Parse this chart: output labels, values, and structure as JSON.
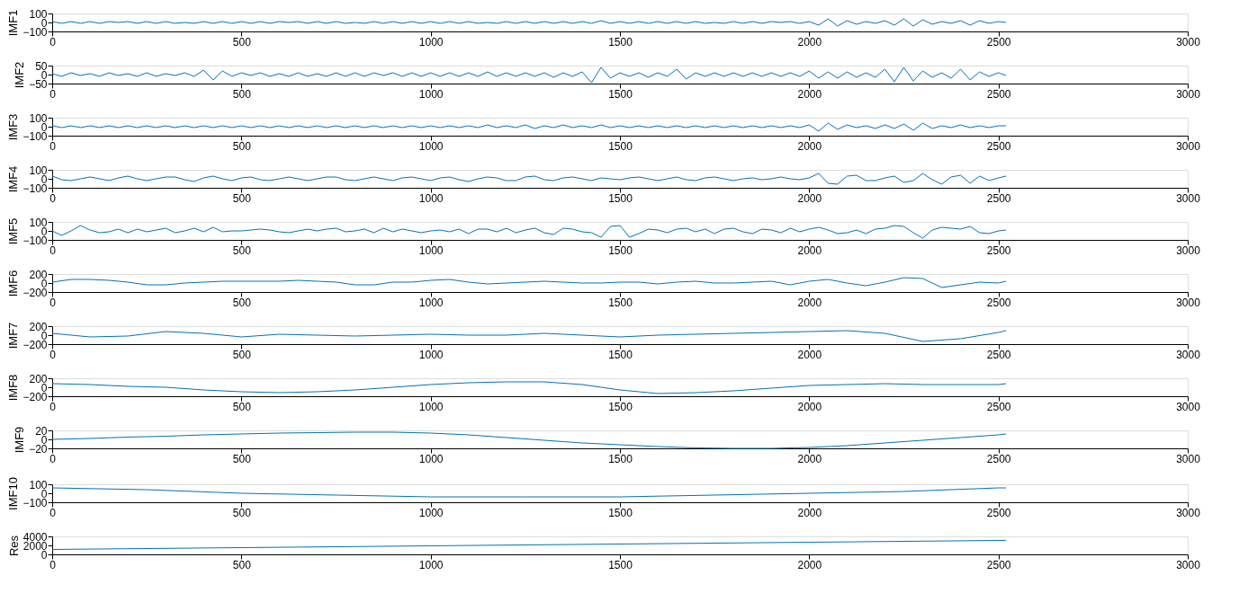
{
  "chart_data": [
    {
      "type": "line",
      "ylabel": "IMF1",
      "xlim": [
        0,
        3000
      ],
      "xticks": [
        0,
        500,
        1000,
        1500,
        2000,
        2500,
        3000
      ],
      "ylim": [
        -100,
        100
      ],
      "yticks": [
        -100,
        0,
        100
      ],
      "grid": false,
      "series": [
        {
          "color": "#0072bd",
          "line_style": "solid",
          "x": [
            0,
            25,
            50,
            75,
            100,
            125,
            150,
            175,
            200,
            225,
            250,
            275,
            300,
            325,
            350,
            375,
            400,
            425,
            450,
            475,
            500,
            525,
            550,
            575,
            600,
            625,
            650,
            675,
            700,
            725,
            750,
            775,
            800,
            825,
            850,
            875,
            900,
            925,
            950,
            975,
            1000,
            1025,
            1050,
            1075,
            1100,
            1125,
            1150,
            1175,
            1200,
            1225,
            1250,
            1275,
            1300,
            1325,
            1350,
            1375,
            1400,
            1425,
            1450,
            1475,
            1500,
            1525,
            1550,
            1575,
            1600,
            1625,
            1650,
            1675,
            1700,
            1725,
            1750,
            1775,
            1800,
            1825,
            1850,
            1875,
            1900,
            1925,
            1950,
            1975,
            2000,
            2025,
            2050,
            2075,
            2100,
            2125,
            2150,
            2175,
            2200,
            2225,
            2250,
            2275,
            2300,
            2325,
            2350,
            2375,
            2400,
            2425,
            2450,
            2475,
            2500,
            2520
          ],
          "values": [
            10,
            -10,
            10,
            -10,
            10,
            -10,
            10,
            0,
            10,
            -10,
            10,
            -10,
            10,
            -10,
            0,
            -10,
            10,
            -10,
            10,
            -10,
            10,
            -10,
            10,
            -10,
            10,
            0,
            10,
            -10,
            10,
            -10,
            10,
            -10,
            0,
            -10,
            10,
            -10,
            10,
            -10,
            10,
            -10,
            10,
            -10,
            10,
            -10,
            10,
            -10,
            0,
            -10,
            10,
            -10,
            10,
            -10,
            10,
            -10,
            10,
            -10,
            10,
            -10,
            20,
            -10,
            10,
            -10,
            10,
            -10,
            10,
            -10,
            10,
            -10,
            10,
            -10,
            0,
            -10,
            10,
            -10,
            10,
            -10,
            10,
            0,
            10,
            -10,
            10,
            -30,
            40,
            -40,
            20,
            -20,
            10,
            -10,
            20,
            -30,
            40,
            -40,
            30,
            -20,
            10,
            -10,
            20,
            -30,
            20,
            -10,
            10,
            0
          ]
        }
      ]
    },
    {
      "type": "line",
      "ylabel": "IMF2",
      "xlim": [
        0,
        3000
      ],
      "xticks": [
        0,
        500,
        1000,
        1500,
        2000,
        2500,
        3000
      ],
      "ylim": [
        -50,
        50
      ],
      "yticks": [
        -50,
        0,
        50
      ],
      "grid": false,
      "series": [
        {
          "color": "#0072bd",
          "line_style": "solid",
          "x": [
            0,
            25,
            50,
            75,
            100,
            125,
            150,
            175,
            200,
            225,
            250,
            275,
            300,
            325,
            350,
            375,
            400,
            425,
            450,
            475,
            500,
            525,
            550,
            575,
            600,
            625,
            650,
            675,
            700,
            725,
            750,
            775,
            800,
            825,
            850,
            875,
            900,
            925,
            950,
            975,
            1000,
            1025,
            1050,
            1075,
            1100,
            1125,
            1150,
            1175,
            1200,
            1225,
            1250,
            1275,
            1300,
            1325,
            1350,
            1375,
            1400,
            1425,
            1450,
            1475,
            1500,
            1525,
            1550,
            1575,
            1600,
            1625,
            1650,
            1675,
            1700,
            1725,
            1750,
            1775,
            1800,
            1825,
            1850,
            1875,
            1900,
            1925,
            1950,
            1975,
            2000,
            2025,
            2050,
            2075,
            2100,
            2125,
            2150,
            2175,
            2200,
            2225,
            2250,
            2275,
            2300,
            2325,
            2350,
            2375,
            2400,
            2425,
            2450,
            2475,
            2500,
            2520
          ],
          "values": [
            5,
            -10,
            10,
            -5,
            5,
            -10,
            10,
            -5,
            5,
            -10,
            10,
            -10,
            5,
            -5,
            10,
            -10,
            25,
            -30,
            20,
            -10,
            10,
            -5,
            10,
            -10,
            5,
            -10,
            10,
            -10,
            5,
            -10,
            10,
            -10,
            10,
            -10,
            10,
            -5,
            10,
            -10,
            10,
            -10,
            10,
            -10,
            10,
            -10,
            10,
            -10,
            15,
            -10,
            10,
            -10,
            10,
            -10,
            10,
            -15,
            10,
            -10,
            15,
            -45,
            40,
            -20,
            10,
            -10,
            10,
            -15,
            10,
            -10,
            30,
            -25,
            10,
            -10,
            10,
            -10,
            10,
            -10,
            10,
            -10,
            10,
            -10,
            10,
            -10,
            20,
            -20,
            15,
            -20,
            15,
            -15,
            10,
            -15,
            30,
            -40,
            40,
            -35,
            20,
            -15,
            10,
            -20,
            30,
            -30,
            15,
            -10,
            10,
            -5
          ]
        }
      ]
    },
    {
      "type": "line",
      "ylabel": "IMF3",
      "xlim": [
        0,
        3000
      ],
      "xticks": [
        0,
        500,
        1000,
        1500,
        2000,
        2500,
        3000
      ],
      "ylim": [
        -100,
        100
      ],
      "yticks": [
        -100,
        0,
        100
      ],
      "grid": false,
      "series": [
        {
          "color": "#0072bd",
          "line_style": "solid",
          "x": [
            0,
            25,
            50,
            75,
            100,
            125,
            150,
            175,
            200,
            225,
            250,
            275,
            300,
            325,
            350,
            375,
            400,
            425,
            450,
            475,
            500,
            525,
            550,
            575,
            600,
            625,
            650,
            675,
            700,
            725,
            750,
            775,
            800,
            825,
            850,
            875,
            900,
            925,
            950,
            975,
            1000,
            1025,
            1050,
            1075,
            1100,
            1125,
            1150,
            1175,
            1200,
            1225,
            1250,
            1275,
            1300,
            1325,
            1350,
            1375,
            1400,
            1425,
            1450,
            1475,
            1500,
            1525,
            1550,
            1575,
            1600,
            1625,
            1650,
            1675,
            1700,
            1725,
            1750,
            1775,
            1800,
            1825,
            1850,
            1875,
            1900,
            1925,
            1950,
            1975,
            2000,
            2025,
            2050,
            2075,
            2100,
            2125,
            2150,
            2175,
            2200,
            2225,
            2250,
            2275,
            2300,
            2325,
            2350,
            2375,
            2400,
            2425,
            2450,
            2475,
            2500,
            2520
          ],
          "values": [
            10,
            -10,
            10,
            -10,
            10,
            -10,
            10,
            -10,
            10,
            -10,
            10,
            -10,
            10,
            -10,
            10,
            -10,
            10,
            -10,
            10,
            -10,
            10,
            -10,
            10,
            -10,
            10,
            -10,
            10,
            -10,
            10,
            -10,
            10,
            -10,
            10,
            -10,
            10,
            -10,
            10,
            -10,
            10,
            -10,
            10,
            -10,
            10,
            -10,
            10,
            -10,
            20,
            -10,
            10,
            -10,
            20,
            -20,
            10,
            -10,
            20,
            -10,
            10,
            -10,
            20,
            -10,
            10,
            -10,
            10,
            -10,
            10,
            -10,
            10,
            -10,
            10,
            -10,
            10,
            -10,
            10,
            -10,
            10,
            -10,
            10,
            -10,
            10,
            -10,
            20,
            -50,
            40,
            -30,
            20,
            -10,
            10,
            -20,
            20,
            -20,
            30,
            -40,
            40,
            -20,
            10,
            -10,
            20,
            -10,
            10,
            -10,
            10,
            10
          ]
        }
      ]
    },
    {
      "type": "line",
      "ylabel": "IMF4",
      "xlim": [
        0,
        3000
      ],
      "xticks": [
        0,
        500,
        1000,
        1500,
        2000,
        2500,
        3000
      ],
      "ylim": [
        -100,
        100
      ],
      "yticks": [
        -100,
        0,
        100
      ],
      "grid": false,
      "series": [
        {
          "color": "#0072bd",
          "line_style": "solid",
          "x": [
            0,
            25,
            50,
            75,
            100,
            125,
            150,
            175,
            200,
            225,
            250,
            275,
            300,
            325,
            350,
            375,
            400,
            425,
            450,
            475,
            500,
            525,
            550,
            575,
            600,
            625,
            650,
            675,
            700,
            725,
            750,
            775,
            800,
            825,
            850,
            875,
            900,
            925,
            950,
            975,
            1000,
            1025,
            1050,
            1075,
            1100,
            1125,
            1150,
            1175,
            1200,
            1225,
            1250,
            1275,
            1300,
            1325,
            1350,
            1375,
            1400,
            1425,
            1450,
            1475,
            1500,
            1525,
            1550,
            1575,
            1600,
            1625,
            1650,
            1675,
            1700,
            1725,
            1750,
            1775,
            1800,
            1825,
            1850,
            1875,
            1900,
            1925,
            1950,
            1975,
            2000,
            2025,
            2050,
            2075,
            2100,
            2125,
            2150,
            2175,
            2200,
            2225,
            2250,
            2275,
            2300,
            2325,
            2350,
            2375,
            2400,
            2425,
            2450,
            2475,
            2500,
            2520
          ],
          "values": [
            30,
            -10,
            -20,
            0,
            20,
            0,
            -20,
            10,
            30,
            0,
            -20,
            0,
            20,
            20,
            -10,
            -30,
            10,
            30,
            0,
            -20,
            10,
            20,
            -10,
            -20,
            0,
            20,
            0,
            -20,
            0,
            20,
            20,
            -10,
            -20,
            0,
            20,
            0,
            -20,
            10,
            20,
            0,
            -20,
            10,
            20,
            -10,
            -30,
            0,
            20,
            10,
            -20,
            -20,
            20,
            30,
            -10,
            -20,
            10,
            20,
            0,
            -20,
            10,
            0,
            -10,
            10,
            20,
            0,
            -20,
            0,
            20,
            -10,
            -20,
            10,
            20,
            0,
            -20,
            0,
            10,
            -10,
            0,
            20,
            0,
            -10,
            10,
            60,
            -50,
            -60,
            30,
            40,
            -20,
            -20,
            10,
            30,
            -40,
            -20,
            60,
            -10,
            -60,
            20,
            40,
            -50,
            30,
            -20,
            10,
            30
          ]
        }
      ]
    },
    {
      "type": "line",
      "ylabel": "IMF5",
      "xlim": [
        0,
        3000
      ],
      "xticks": [
        0,
        500,
        1000,
        1500,
        2000,
        2500,
        3000
      ],
      "ylim": [
        -100,
        100
      ],
      "yticks": [
        -100,
        0,
        100
      ],
      "grid": false,
      "series": [
        {
          "color": "#0072bd",
          "line_style": "solid",
          "x": [
            0,
            25,
            50,
            75,
            100,
            125,
            150,
            175,
            200,
            225,
            250,
            275,
            300,
            325,
            350,
            375,
            400,
            425,
            450,
            475,
            500,
            525,
            550,
            575,
            600,
            625,
            650,
            675,
            700,
            725,
            750,
            775,
            800,
            825,
            850,
            875,
            900,
            925,
            950,
            975,
            1000,
            1025,
            1050,
            1075,
            1100,
            1125,
            1150,
            1175,
            1200,
            1225,
            1250,
            1275,
            1300,
            1325,
            1350,
            1375,
            1400,
            1425,
            1450,
            1475,
            1500,
            1525,
            1550,
            1575,
            1600,
            1625,
            1650,
            1675,
            1700,
            1725,
            1750,
            1775,
            1800,
            1825,
            1850,
            1875,
            1900,
            1925,
            1950,
            1975,
            2000,
            2025,
            2050,
            2075,
            2100,
            2125,
            2150,
            2175,
            2200,
            2225,
            2250,
            2275,
            2300,
            2325,
            2350,
            2375,
            2400,
            2425,
            2450,
            2475,
            2500,
            2520
          ],
          "values": [
            0,
            -50,
            0,
            60,
            10,
            -20,
            -10,
            20,
            -20,
            20,
            -10,
            10,
            30,
            -20,
            0,
            30,
            -10,
            40,
            -10,
            0,
            0,
            10,
            20,
            10,
            -10,
            -20,
            0,
            20,
            0,
            20,
            30,
            -10,
            0,
            20,
            -20,
            30,
            -10,
            20,
            0,
            -20,
            0,
            10,
            -10,
            20,
            -30,
            20,
            20,
            -10,
            30,
            -20,
            10,
            30,
            -20,
            -40,
            30,
            20,
            -10,
            -20,
            -70,
            50,
            60,
            -70,
            -30,
            20,
            10,
            -20,
            20,
            30,
            -10,
            20,
            -30,
            20,
            30,
            -10,
            -30,
            20,
            10,
            -20,
            30,
            -10,
            20,
            40,
            10,
            -30,
            -20,
            10,
            -30,
            20,
            30,
            60,
            50,
            -20,
            -80,
            10,
            40,
            30,
            20,
            50,
            -20,
            -30,
            0,
            10
          ]
        }
      ]
    },
    {
      "type": "line",
      "ylabel": "IMF6",
      "xlim": [
        0,
        3000
      ],
      "xticks": [
        0,
        500,
        1000,
        1500,
        2000,
        2500,
        3000
      ],
      "ylim": [
        -200,
        200
      ],
      "yticks": [
        -200,
        0,
        200
      ],
      "grid": false,
      "series": [
        {
          "color": "#0072bd",
          "line_style": "solid",
          "x": [
            0,
            50,
            100,
            150,
            200,
            250,
            300,
            350,
            400,
            450,
            500,
            550,
            600,
            650,
            700,
            750,
            800,
            850,
            900,
            950,
            1000,
            1050,
            1100,
            1150,
            1200,
            1250,
            1300,
            1350,
            1400,
            1450,
            1500,
            1550,
            1600,
            1650,
            1700,
            1750,
            1800,
            1850,
            1900,
            1950,
            2000,
            2050,
            2100,
            2150,
            2200,
            2250,
            2300,
            2350,
            2400,
            2450,
            2500,
            2520
          ],
          "values": [
            20,
            80,
            80,
            60,
            20,
            -40,
            -40,
            0,
            20,
            40,
            40,
            40,
            40,
            60,
            40,
            20,
            -40,
            -40,
            20,
            20,
            60,
            80,
            20,
            -20,
            0,
            20,
            40,
            20,
            0,
            0,
            20,
            20,
            -20,
            20,
            40,
            0,
            0,
            20,
            40,
            -40,
            40,
            80,
            0,
            -60,
            20,
            120,
            100,
            -100,
            -40,
            20,
            0,
            40
          ]
        }
      ]
    },
    {
      "type": "line",
      "ylabel": "IMF7",
      "xlim": [
        0,
        3000
      ],
      "xticks": [
        0,
        500,
        1000,
        1500,
        2000,
        2500,
        3000
      ],
      "ylim": [
        -200,
        200
      ],
      "yticks": [
        -200,
        0,
        200
      ],
      "grid": false,
      "series": [
        {
          "color": "#0072bd",
          "line_style": "solid",
          "x": [
            0,
            100,
            200,
            300,
            400,
            500,
            600,
            700,
            800,
            900,
            1000,
            1100,
            1200,
            1300,
            1400,
            1500,
            1600,
            1700,
            1800,
            1900,
            2000,
            2100,
            2200,
            2300,
            2400,
            2500,
            2520
          ],
          "values": [
            40,
            -40,
            -20,
            80,
            40,
            -40,
            20,
            0,
            -20,
            0,
            20,
            0,
            0,
            40,
            0,
            -40,
            0,
            20,
            40,
            60,
            80,
            100,
            40,
            -140,
            -80,
            60,
            100
          ]
        }
      ]
    },
    {
      "type": "line",
      "ylabel": "IMF8",
      "xlim": [
        0,
        3000
      ],
      "xticks": [
        0,
        500,
        1000,
        1500,
        2000,
        2500,
        3000
      ],
      "ylim": [
        -200,
        200
      ],
      "yticks": [
        -200,
        0,
        200
      ],
      "grid": false,
      "series": [
        {
          "color": "#0072bd",
          "line_style": "solid",
          "x": [
            0,
            100,
            200,
            300,
            400,
            500,
            600,
            700,
            800,
            900,
            1000,
            1100,
            1200,
            1300,
            1400,
            1500,
            1600,
            1700,
            1800,
            1900,
            2000,
            2100,
            2200,
            2300,
            2400,
            2500,
            2520
          ],
          "values": [
            80,
            60,
            20,
            0,
            -60,
            -100,
            -120,
            -100,
            -60,
            0,
            60,
            100,
            120,
            120,
            60,
            -60,
            -140,
            -120,
            -80,
            -20,
            40,
            60,
            80,
            60,
            60,
            60,
            80
          ]
        }
      ]
    },
    {
      "type": "line",
      "ylabel": "IMF9",
      "xlim": [
        0,
        3000
      ],
      "xticks": [
        0,
        500,
        1000,
        1500,
        2000,
        2500,
        3000
      ],
      "ylim": [
        -20,
        20
      ],
      "yticks": [
        -20,
        0,
        20
      ],
      "grid": false,
      "series": [
        {
          "color": "#0072bd",
          "line_style": "solid",
          "x": [
            0,
            100,
            200,
            300,
            400,
            500,
            600,
            700,
            800,
            900,
            1000,
            1100,
            1200,
            1300,
            1400,
            1500,
            1600,
            1700,
            1800,
            1900,
            2000,
            2100,
            2200,
            2300,
            2400,
            2500,
            2520
          ],
          "values": [
            0,
            2,
            5,
            7,
            10,
            12,
            14,
            15,
            16,
            16,
            14,
            10,
            4,
            -2,
            -8,
            -12,
            -16,
            -19,
            -20,
            -20,
            -18,
            -14,
            -8,
            -2,
            4,
            10,
            12
          ]
        }
      ]
    },
    {
      "type": "line",
      "ylabel": "IMF10",
      "xlim": [
        0,
        3000
      ],
      "xticks": [
        0,
        500,
        1000,
        1500,
        2000,
        2500,
        3000
      ],
      "ylim": [
        -100,
        100
      ],
      "yticks": [
        -100,
        0,
        100
      ],
      "grid": false,
      "series": [
        {
          "color": "#0072bd",
          "line_style": "solid",
          "x": [
            0,
            250,
            500,
            750,
            1000,
            1250,
            1500,
            1750,
            2000,
            2250,
            2500,
            2520
          ],
          "values": [
            60,
            40,
            0,
            -20,
            -40,
            -40,
            -40,
            -20,
            0,
            20,
            60,
            60
          ]
        }
      ]
    },
    {
      "type": "line",
      "ylabel": "Res",
      "xlim": [
        0,
        3000
      ],
      "xticks": [
        0,
        500,
        1000,
        1500,
        2000,
        2500,
        3000
      ],
      "ylim": [
        0,
        4000
      ],
      "yticks": [
        0,
        2000,
        4000
      ],
      "grid": false,
      "series": [
        {
          "color": "#0072bd",
          "line_style": "solid",
          "x": [
            0,
            500,
            1000,
            1500,
            2000,
            2500,
            2520
          ],
          "values": [
            1100,
            1500,
            1900,
            2300,
            2700,
            3100,
            3120
          ]
        }
      ]
    }
  ]
}
